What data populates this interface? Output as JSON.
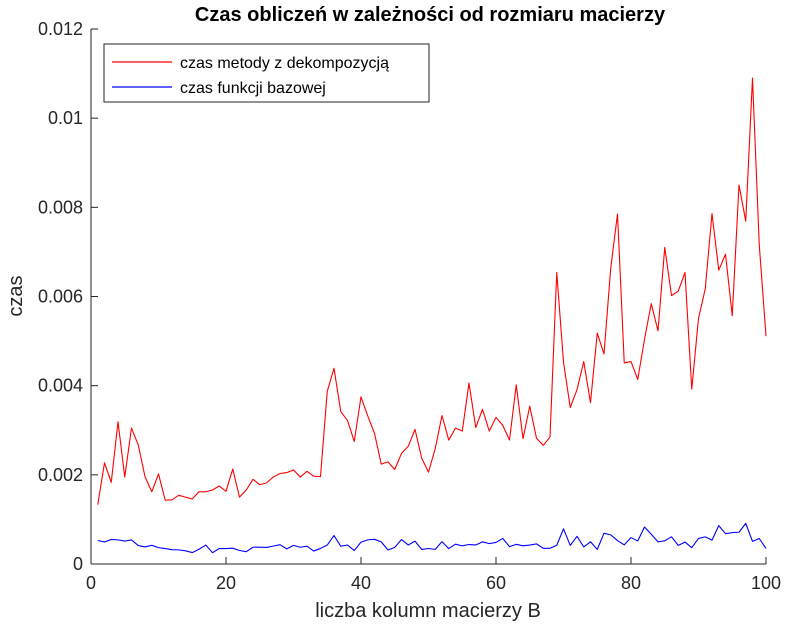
{
  "chart_data": {
    "type": "line",
    "title": "Czas obliczeń w zależności od rozmiaru macierzy",
    "xlabel": "liczba kolumn macierzy B",
    "ylabel": "czas",
    "xlim": [
      0,
      100
    ],
    "ylim": [
      0,
      0.012
    ],
    "x_ticks": [
      0,
      20,
      40,
      60,
      80,
      100
    ],
    "x_tick_labels": [
      "0",
      "20",
      "40",
      "60",
      "80",
      "100"
    ],
    "y_ticks": [
      0,
      0.002,
      0.004,
      0.006,
      0.008,
      0.01,
      0.012
    ],
    "y_tick_labels": [
      "0",
      "0.002",
      "0.004",
      "0.006",
      "0.008",
      "0.01",
      "0.012"
    ],
    "grid": false,
    "legend_position": "top-left",
    "x": [
      1,
      2,
      3,
      4,
      5,
      6,
      7,
      8,
      9,
      10,
      11,
      12,
      13,
      14,
      15,
      16,
      17,
      18,
      19,
      20,
      21,
      22,
      23,
      24,
      25,
      26,
      27,
      28,
      29,
      30,
      31,
      32,
      33,
      34,
      35,
      36,
      37,
      38,
      39,
      40,
      41,
      42,
      43,
      44,
      45,
      46,
      47,
      48,
      49,
      50,
      51,
      52,
      53,
      54,
      55,
      56,
      57,
      58,
      59,
      60,
      61,
      62,
      63,
      64,
      65,
      66,
      67,
      68,
      69,
      70,
      71,
      72,
      73,
      74,
      75,
      76,
      77,
      78,
      79,
      80,
      81,
      82,
      83,
      84,
      85,
      86,
      87,
      88,
      89,
      90,
      91,
      92,
      93,
      94,
      95,
      96,
      97,
      98,
      99,
      100
    ],
    "series": [
      {
        "name": "czas metody z dekompozycją",
        "color": "#ff0000",
        "values": [
          0.00133,
          0.00227,
          0.00183,
          0.00319,
          0.00195,
          0.00305,
          0.00267,
          0.00196,
          0.00162,
          0.00202,
          0.00143,
          0.00144,
          0.00154,
          0.0015,
          0.00146,
          0.00162,
          0.00162,
          0.00166,
          0.00175,
          0.00163,
          0.00213,
          0.0015,
          0.00166,
          0.0019,
          0.00178,
          0.00182,
          0.00195,
          0.00203,
          0.00205,
          0.00211,
          0.00195,
          0.00208,
          0.00197,
          0.00196,
          0.00387,
          0.00439,
          0.00342,
          0.00322,
          0.00275,
          0.00375,
          0.00332,
          0.00293,
          0.00224,
          0.00229,
          0.00212,
          0.00248,
          0.00264,
          0.00302,
          0.00237,
          0.00206,
          0.00259,
          0.00333,
          0.00278,
          0.00305,
          0.00298,
          0.00406,
          0.00306,
          0.00347,
          0.00298,
          0.00329,
          0.00311,
          0.00278,
          0.00402,
          0.00281,
          0.00354,
          0.00282,
          0.00266,
          0.00285,
          0.00654,
          0.00453,
          0.00351,
          0.00391,
          0.00454,
          0.00362,
          0.00518,
          0.00471,
          0.00664,
          0.00785,
          0.00451,
          0.00454,
          0.00414,
          0.00504,
          0.00584,
          0.00523,
          0.0071,
          0.00602,
          0.00612,
          0.00654,
          0.00392,
          0.00551,
          0.00617,
          0.00786,
          0.00659,
          0.00695,
          0.00557,
          0.0085,
          0.00769,
          0.0109,
          0.00716,
          0.00511
        ]
      },
      {
        "name": "czas funkcji bazowej",
        "color": "#0000ff",
        "values": [
          0.000527,
          0.000495,
          0.00055,
          0.000541,
          0.000515,
          0.00054,
          0.000413,
          0.000382,
          0.000419,
          0.000367,
          0.000347,
          0.000321,
          0.000317,
          0.000296,
          0.000256,
          0.000331,
          0.000425,
          0.000254,
          0.000348,
          0.000347,
          0.000355,
          0.000303,
          0.000276,
          0.000376,
          0.000377,
          0.000371,
          0.000401,
          0.000433,
          0.000339,
          0.000418,
          0.000376,
          0.000399,
          0.00029,
          0.000349,
          0.000426,
          0.000637,
          0.000398,
          0.000426,
          0.000301,
          0.00049,
          0.000541,
          0.000554,
          0.000496,
          0.000314,
          0.000374,
          0.000548,
          0.000427,
          0.000513,
          0.000326,
          0.000348,
          0.000328,
          0.000503,
          0.000346,
          0.000445,
          0.000407,
          0.000437,
          0.000427,
          0.000497,
          0.000457,
          0.000484,
          0.000573,
          0.000389,
          0.000441,
          0.000408,
          0.000424,
          0.000451,
          0.000352,
          0.000352,
          0.000421,
          0.000789,
          0.000416,
          0.000622,
          0.000384,
          0.000498,
          0.000328,
          0.000689,
          0.000653,
          0.000526,
          0.000429,
          0.000593,
          0.000517,
          0.000831,
          0.000667,
          0.000496,
          0.000521,
          0.00061,
          0.000418,
          0.000492,
          0.000366,
          0.000574,
          0.000608,
          0.000536,
          0.000861,
          0.00068,
          0.000704,
          0.000712,
          0.000911,
          0.000507,
          0.000572,
          0.000349
        ]
      }
    ]
  }
}
